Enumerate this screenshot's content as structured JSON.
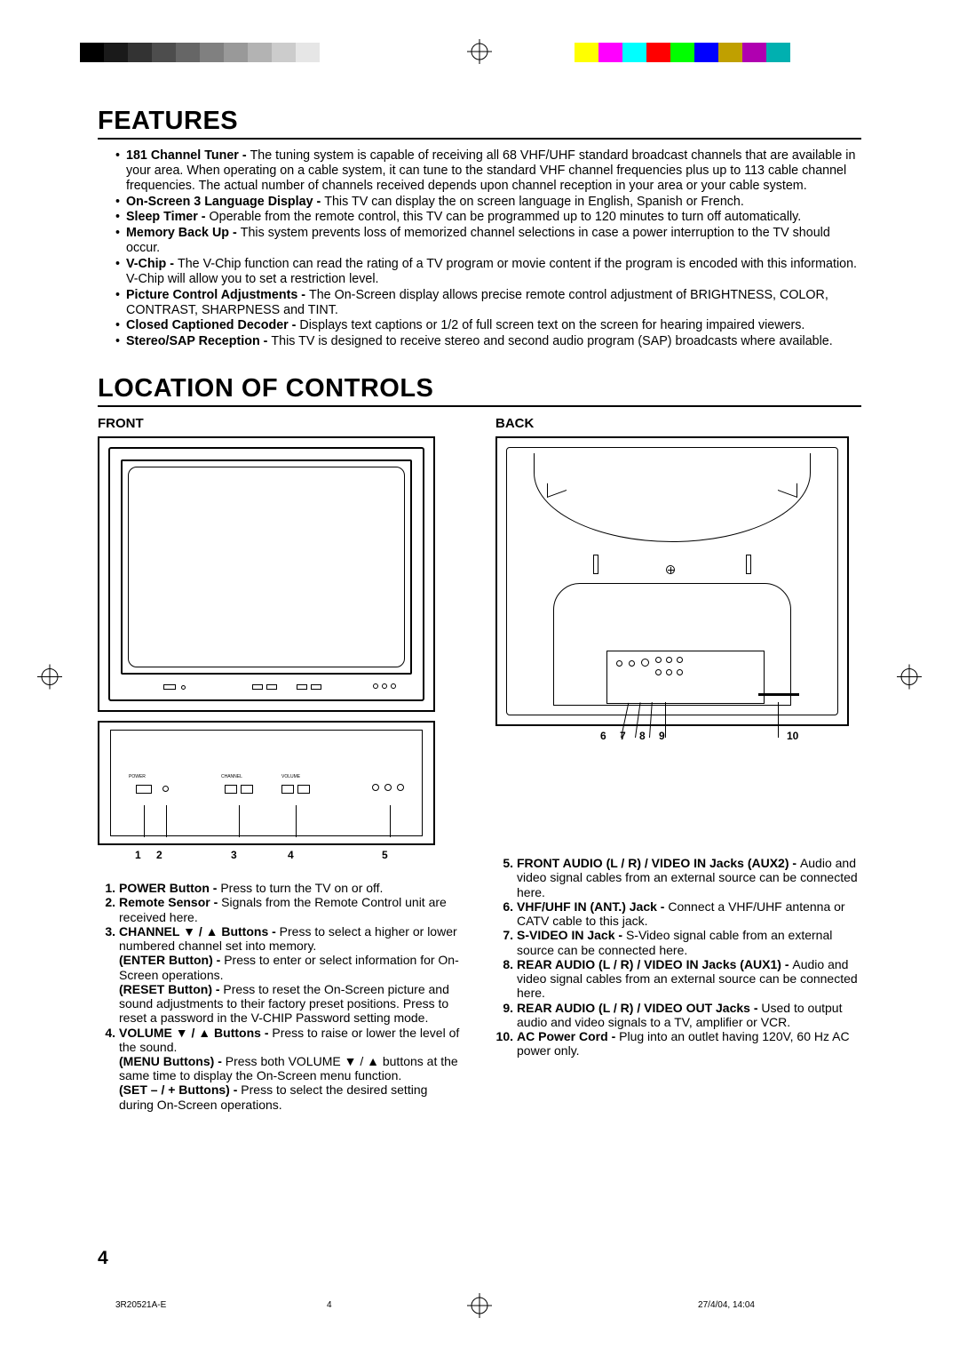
{
  "reg_colors_gray": [
    "#000000",
    "#1a1a1a",
    "#333333",
    "#4d4d4d",
    "#666666",
    "#808080",
    "#999999",
    "#b3b3b3",
    "#cccccc",
    "#e6e6e6"
  ],
  "reg_colors_color": [
    "#ffff00",
    "#ff00ff",
    "#00ffff",
    "#ff0000",
    "#00ff00",
    "#0000ff",
    "#c0a000",
    "#b000b0",
    "#00b0b0"
  ],
  "headings": {
    "features": "FEATURES",
    "location": "LOCATION OF CONTROLS",
    "front": "FRONT",
    "back": "BACK"
  },
  "features": [
    {
      "b": "181 Channel Tuner - ",
      "t": "The tuning system is capable of receiving all 68 VHF/UHF standard broadcast channels that are available in your area. When operating on a cable system, it can tune to the standard VHF channel frequencies plus up to 113 cable channel frequencies. The actual number of channels received depends upon channel reception in your area or your cable system."
    },
    {
      "b": "On-Screen 3 Language Display - ",
      "t": "This TV can display the on screen language in English, Spanish or French."
    },
    {
      "b": "Sleep Timer - ",
      "t": "Operable from the remote control, this TV can be programmed up to 120 minutes to turn off automatically."
    },
    {
      "b": "Memory Back Up - ",
      "t": "This system prevents loss of memorized channel selections in case a power interruption to the TV should occur."
    },
    {
      "b": "V-Chip - ",
      "t": "The V-Chip function can read the rating of a TV program or movie content if the program is encoded with this information. V-Chip will allow you to set a restriction level."
    },
    {
      "b": "Picture Control Adjustments - ",
      "t": "The On-Screen display allows precise remote control adjustment of BRIGHTNESS, COLOR, CONTRAST, SHARPNESS and TINT."
    },
    {
      "b": "Closed Captioned Decoder - ",
      "t": "Displays text captions or 1/2 of full screen text on the screen for hearing impaired viewers."
    },
    {
      "b": "Stereo/SAP Reception - ",
      "t": "This TV is designed to receive stereo and second audio program (SAP) broadcasts where available."
    }
  ],
  "front_callouts": [
    "1",
    "2",
    "3",
    "4",
    "5"
  ],
  "back_callouts_left": [
    "6",
    "7",
    "8",
    "9"
  ],
  "back_callouts_right": "10",
  "front_desc": [
    {
      "n": "1.",
      "b": "POWER Button - ",
      "t": "Press to turn the TV on or off."
    },
    {
      "n": "2.",
      "b": "Remote Sensor - ",
      "t": "Signals from the Remote Control unit are received here."
    },
    {
      "n": "3.",
      "b": "CHANNEL ▼ / ▲ Buttons - ",
      "t": "Press to select a higher or lower numbered channel set into memory.",
      "extra": [
        {
          "b": "(ENTER Button) - ",
          "t": "Press to enter or select information for On-Screen operations."
        },
        {
          "b": "(RESET Button) - ",
          "t": "Press to reset the On-Screen picture and sound adjustments to their factory preset positions. Press to reset a password in the V-CHIP Password setting mode."
        }
      ]
    },
    {
      "n": "4.",
      "b": "VOLUME ▼ / ▲ Buttons - ",
      "t": "Press to raise or lower the level of the sound.",
      "extra": [
        {
          "b": "(MENU Buttons) - ",
          "t": "Press both VOLUME ▼ / ▲ buttons at the same time to display the On-Screen menu function."
        },
        {
          "b": "(SET – / + Buttons) - ",
          "t": "Press to select the desired setting during On-Screen operations."
        }
      ]
    }
  ],
  "back_desc": [
    {
      "n": "5.",
      "b": "FRONT AUDIO (L / R) / VIDEO IN Jacks (AUX2) - ",
      "t": "Audio and video signal cables from an external source can be connected here."
    },
    {
      "n": "6.",
      "b": "VHF/UHF IN (ANT.) Jack - ",
      "t": "Connect a VHF/UHF antenna or CATV cable to this jack."
    },
    {
      "n": "7.",
      "b": "S-VIDEO IN Jack - ",
      "t": "S-Video signal cable from an external source can be connected here."
    },
    {
      "n": "8.",
      "b": "REAR AUDIO (L / R) / VIDEO IN Jacks (AUX1) - ",
      "t": "Audio and video signal cables from an external source can be connected here."
    },
    {
      "n": "9.",
      "b": "REAR AUDIO (L / R) / VIDEO OUT Jacks - ",
      "t": "Used to output audio and video signals to a TV, amplifier or VCR."
    },
    {
      "n": "10.",
      "b": "AC Power Cord - ",
      "t": "Plug into an outlet having 120V, 60 Hz AC power only."
    }
  ],
  "page_number": "4",
  "footer": {
    "code": "3R20521A-E",
    "page": "4",
    "date": "27/4/04, 14:04"
  }
}
